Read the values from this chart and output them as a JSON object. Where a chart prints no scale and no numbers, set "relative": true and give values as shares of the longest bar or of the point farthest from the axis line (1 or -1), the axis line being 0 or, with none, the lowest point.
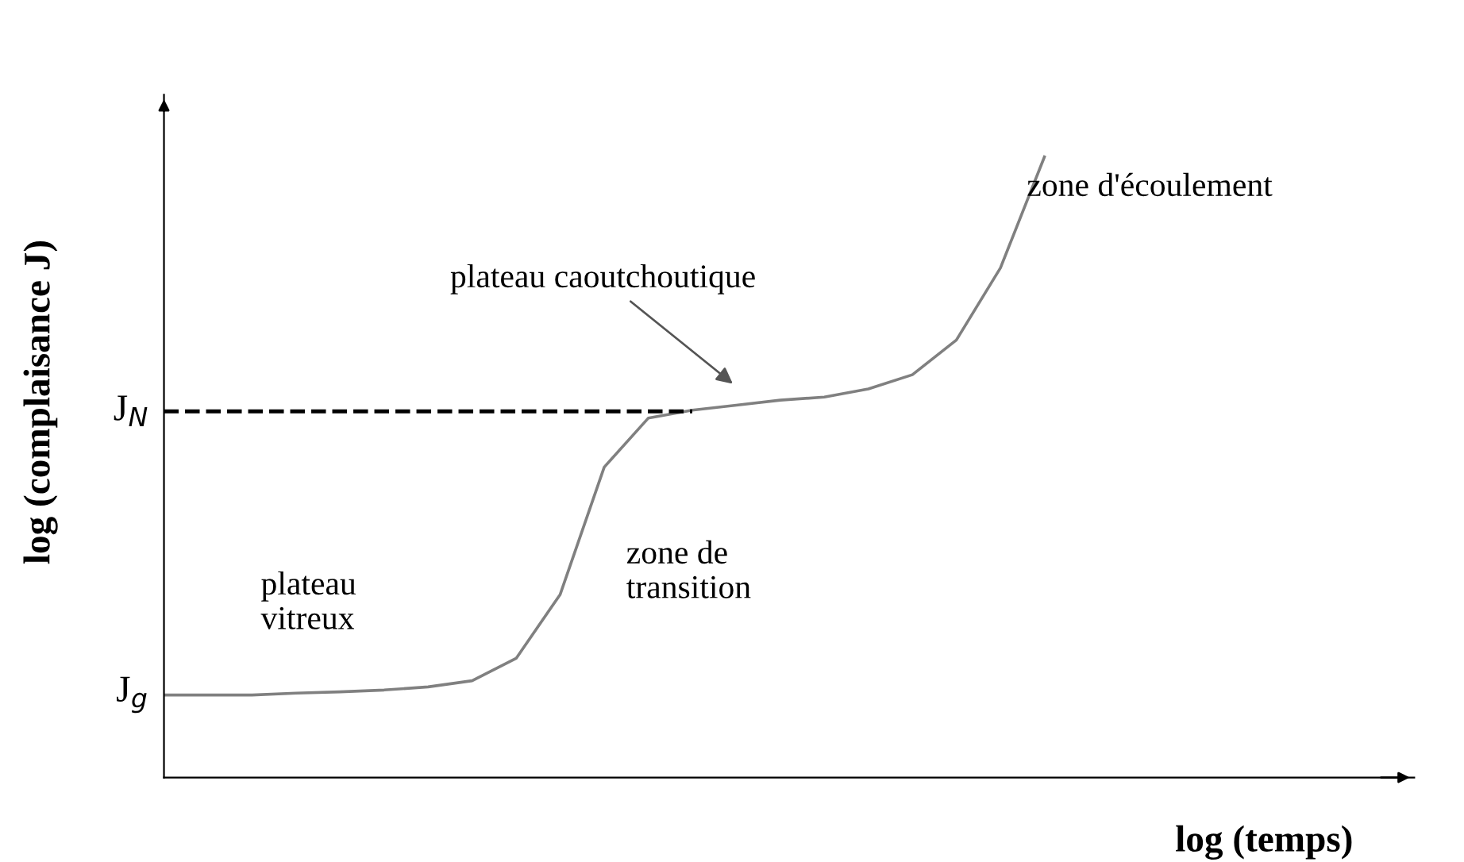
{
  "chart_data": {
    "type": "line",
    "relative": true,
    "xlabel": "log (temps)",
    "ylabel": "log (complaisance J)",
    "categories": [
      null,
      null,
      null,
      null,
      null,
      null,
      null,
      null,
      null,
      null,
      null,
      null,
      null,
      null,
      null,
      null,
      null,
      null,
      null,
      null,
      null
    ],
    "series": [
      {
        "color": "#808080",
        "values": [
          0.133,
          0.133,
          0.133,
          0.136,
          0.138,
          0.141,
          0.146,
          0.156,
          0.192,
          0.295,
          0.5,
          0.579,
          0.592,
          0.6,
          0.608,
          0.613,
          0.626,
          0.649,
          0.705,
          0.821,
          1
        ]
      }
    ],
    "ref_lines": [
      {
        "axis": "y",
        "value": 0.59,
        "label": "J$_{N}$",
        "line_style": "dashed",
        "color": "#000000"
      }
    ],
    "annotations": [
      "plateau\nvitreux",
      "zone de\ntransition",
      "plateau caoutchoutique",
      "zone d'écoulement",
      "J$_{g}$"
    ],
    "marker": "none",
    "line_style": "solid"
  }
}
